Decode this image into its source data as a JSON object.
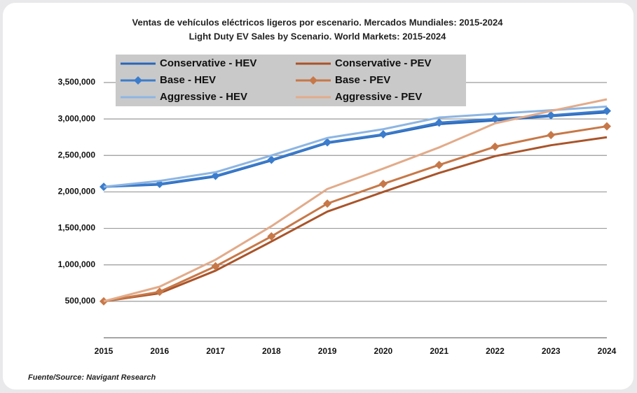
{
  "chart_data": {
    "type": "line",
    "title": "Ventas de vehículos eléctricos ligeros por escenario. Mercados Mundiales: 2015-2024",
    "subtitle": "Light Duty EV Sales by Scenario. World Markets: 2015-2024",
    "source": "Fuente/Source: Navigant Research",
    "categories": [
      "2015",
      "2016",
      "2017",
      "2018",
      "2019",
      "2020",
      "2021",
      "2022",
      "2023",
      "2024"
    ],
    "ylim": [
      0,
      3500000
    ],
    "yticks": [
      {
        "value": 500000,
        "label": "500,000"
      },
      {
        "value": 1000000,
        "label": "1,000,000"
      },
      {
        "value": 1500000,
        "label": "1,500,000"
      },
      {
        "value": 2000000,
        "label": "2,000,000"
      },
      {
        "value": 2500000,
        "label": "2,500,000"
      },
      {
        "value": 3000000,
        "label": "3,000,000"
      },
      {
        "value": 3500000,
        "label": "3,500,000"
      }
    ],
    "grid": true,
    "legend": "top",
    "series": [
      {
        "name": "Conservative - HEV",
        "color": "#2a66b8",
        "values": [
          2070000,
          2100000,
          2210000,
          2430000,
          2670000,
          2780000,
          2930000,
          2980000,
          3040000,
          3090000
        ]
      },
      {
        "name": "Conservative - PEV",
        "color": "#a9542a",
        "values": [
          500000,
          610000,
          920000,
          1320000,
          1730000,
          2000000,
          2260000,
          2490000,
          2640000,
          2750000
        ]
      },
      {
        "name": "Base - HEV",
        "color": "#3b7ccc",
        "marker": "diamond",
        "values": [
          2070000,
          2110000,
          2220000,
          2440000,
          2680000,
          2790000,
          2950000,
          3000000,
          3050000,
          3110000
        ]
      },
      {
        "name": "Base - PEV",
        "color": "#c77848",
        "marker": "diamond",
        "values": [
          500000,
          630000,
          980000,
          1390000,
          1840000,
          2110000,
          2370000,
          2620000,
          2780000,
          2900000
        ]
      },
      {
        "name": "Aggressive - HEV",
        "color": "#8db5e2",
        "values": [
          2070000,
          2150000,
          2270000,
          2500000,
          2740000,
          2860000,
          3020000,
          3070000,
          3120000,
          3170000
        ]
      },
      {
        "name": "Aggressive - PEV",
        "color": "#e2ab8a",
        "values": [
          500000,
          700000,
          1070000,
          1530000,
          2040000,
          2320000,
          2610000,
          2940000,
          3110000,
          3270000
        ]
      }
    ]
  }
}
